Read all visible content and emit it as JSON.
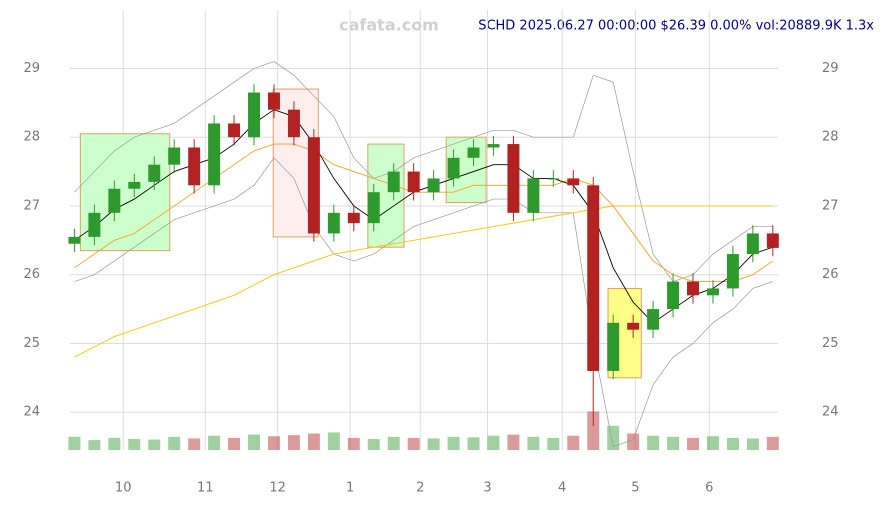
{
  "chart_data": {
    "type": "candlestick",
    "title": "SCHD 2025.06.27 00:00:00 $26.39 0.00% vol:20889.9K 1.3x",
    "watermark": "cafata.com",
    "title_color": "#00008b",
    "up_color": "#2e9a2e",
    "down_color": "#b22222",
    "grid": true,
    "xlim": [
      9.34,
      18.92
    ],
    "xticks": [
      {
        "value": 10.06,
        "label": "10"
      },
      {
        "value": 11.17,
        "label": "11"
      },
      {
        "value": 12.15,
        "label": "12"
      },
      {
        "value": 13.13,
        "label": "1"
      },
      {
        "value": 14.08,
        "label": "2"
      },
      {
        "value": 14.99,
        "label": "3"
      },
      {
        "value": 16.0,
        "label": "4"
      },
      {
        "value": 16.99,
        "label": "5"
      },
      {
        "value": 17.99,
        "label": "6"
      }
    ],
    "ylim": [
      23.45,
      29.85
    ],
    "yticks": [
      24,
      25,
      26,
      27,
      28,
      29
    ],
    "x": [
      9.4,
      9.67,
      9.94,
      10.21,
      10.48,
      10.75,
      11.02,
      11.29,
      11.56,
      11.83,
      12.1,
      12.37,
      12.64,
      12.91,
      13.18,
      13.45,
      13.72,
      13.99,
      14.26,
      14.53,
      14.8,
      15.07,
      15.34,
      15.61,
      15.88,
      16.15,
      16.42,
      16.69,
      16.96,
      17.23,
      17.5,
      17.77,
      18.04,
      18.31,
      18.58,
      18.85
    ],
    "open": [
      26.45,
      26.55,
      26.9,
      27.25,
      27.35,
      27.6,
      27.85,
      27.3,
      28.2,
      28.0,
      28.65,
      28.4,
      28.0,
      26.6,
      26.9,
      26.75,
      27.2,
      27.5,
      27.2,
      27.4,
      27.7,
      27.85,
      27.9,
      26.9,
      27.4,
      27.4,
      27.3,
      24.6,
      25.3,
      25.2,
      25.5,
      25.9,
      25.7,
      25.8,
      26.3,
      26.6
    ],
    "high": [
      26.67,
      27.02,
      27.37,
      27.47,
      27.72,
      27.97,
      27.97,
      28.32,
      28.32,
      28.77,
      28.77,
      28.52,
      28.12,
      27.02,
      27.02,
      27.32,
      27.62,
      27.62,
      27.52,
      27.82,
      27.97,
      28.02,
      28.02,
      27.52,
      27.52,
      27.52,
      27.42,
      25.42,
      25.42,
      25.62,
      26.02,
      26.02,
      25.92,
      26.42,
      26.72,
      26.72
    ],
    "low": [
      26.33,
      26.43,
      26.78,
      27.13,
      27.23,
      27.48,
      27.18,
      27.18,
      27.88,
      27.88,
      28.28,
      27.88,
      26.48,
      26.48,
      26.63,
      26.63,
      27.08,
      27.08,
      27.08,
      27.28,
      27.58,
      27.73,
      26.78,
      26.78,
      27.28,
      27.18,
      23.8,
      24.48,
      25.08,
      25.08,
      25.38,
      25.58,
      25.58,
      25.68,
      26.18,
      26.27
    ],
    "close": [
      26.55,
      26.9,
      27.25,
      27.35,
      27.6,
      27.85,
      27.3,
      28.2,
      28.0,
      28.65,
      28.4,
      28.0,
      26.6,
      26.9,
      26.75,
      27.2,
      27.5,
      27.2,
      27.4,
      27.7,
      27.85,
      27.9,
      26.9,
      27.4,
      27.4,
      27.3,
      24.6,
      25.3,
      25.2,
      25.5,
      25.9,
      25.7,
      25.8,
      26.3,
      26.6,
      26.39
    ],
    "y2lim": [
      0,
      400000
    ],
    "volume": [
      12000,
      9000,
      11000,
      10000,
      9500,
      12000,
      10500,
      13000,
      11000,
      14000,
      12500,
      13500,
      15000,
      16000,
      11000,
      10000,
      12000,
      11000,
      10500,
      12000,
      11500,
      13000,
      14000,
      12000,
      11000,
      13000,
      35000,
      22000,
      15000,
      13000,
      12000,
      11000,
      12500,
      11000,
      10500,
      12000
    ],
    "overlays": [
      {
        "color": "#999999",
        "values": [
          27.2,
          27.5,
          27.8,
          28.0,
          28.1,
          28.2,
          28.4,
          28.6,
          28.8,
          29.0,
          29.1,
          28.9,
          28.6,
          28.3,
          27.7,
          27.4,
          27.5,
          27.7,
          27.8,
          27.9,
          28.0,
          28.1,
          28.1,
          28.0,
          28.0,
          28.0,
          28.9,
          28.8,
          27.5,
          26.3,
          25.9,
          26.0,
          26.3,
          26.5,
          26.7,
          26.7
        ]
      },
      {
        "color": "#999999",
        "values": [
          25.9,
          26.0,
          26.2,
          26.4,
          26.6,
          26.8,
          26.9,
          27.0,
          27.1,
          27.3,
          27.7,
          27.4,
          26.7,
          26.3,
          26.2,
          26.3,
          26.5,
          26.7,
          26.8,
          26.9,
          27.0,
          27.1,
          27.1,
          26.9,
          26.9,
          26.9,
          25.0,
          23.5,
          23.6,
          24.4,
          24.8,
          25.0,
          25.3,
          25.5,
          25.8,
          25.9
        ]
      },
      {
        "color": "#f5c800",
        "values": [
          24.8,
          24.95,
          25.1,
          25.2,
          25.3,
          25.4,
          25.5,
          25.6,
          25.7,
          25.85,
          26.0,
          26.1,
          26.2,
          26.3,
          26.35,
          26.4,
          26.45,
          26.5,
          26.55,
          26.6,
          26.65,
          26.7,
          26.75,
          26.8,
          26.85,
          26.9,
          26.95,
          27.0,
          27.0,
          27.0,
          27.0,
          27.0,
          27.0,
          27.0,
          27.0,
          27.0
        ]
      },
      {
        "color": "#f0a020",
        "values": [
          26.1,
          26.3,
          26.5,
          26.6,
          26.8,
          27.0,
          27.2,
          27.4,
          27.6,
          27.8,
          27.9,
          27.9,
          27.8,
          27.6,
          27.5,
          27.4,
          27.3,
          27.2,
          27.2,
          27.2,
          27.3,
          27.3,
          27.3,
          27.3,
          27.3,
          27.4,
          27.3,
          27.0,
          26.6,
          26.2,
          26.0,
          25.9,
          25.9,
          25.9,
          26.0,
          26.2
        ]
      },
      {
        "color": "#000000",
        "values": [
          26.5,
          26.7,
          26.95,
          27.1,
          27.3,
          27.5,
          27.6,
          27.7,
          27.9,
          28.2,
          28.4,
          28.3,
          27.9,
          27.4,
          27.0,
          26.8,
          27.0,
          27.2,
          27.3,
          27.4,
          27.5,
          27.6,
          27.6,
          27.4,
          27.4,
          27.3,
          26.9,
          26.1,
          25.6,
          25.3,
          25.5,
          25.7,
          25.8,
          26.0,
          26.3,
          26.4
        ]
      }
    ],
    "boxes": [
      {
        "x": [
          9.48,
          10.69
        ],
        "y": [
          26.35,
          28.05
        ],
        "color": "#ccffcc"
      },
      {
        "x": [
          12.09,
          12.7
        ],
        "y": [
          26.55,
          28.7
        ],
        "color": "#ffeeee"
      },
      {
        "x": [
          13.37,
          13.86
        ],
        "y": [
          26.4,
          27.9
        ],
        "color": "#ccffcc"
      },
      {
        "x": [
          14.43,
          14.97
        ],
        "y": [
          27.05,
          28.0
        ],
        "color": "#ccffcc"
      },
      {
        "x": [
          16.62,
          17.07
        ],
        "y": [
          24.5,
          25.8
        ],
        "color": "#ffff88"
      }
    ]
  }
}
